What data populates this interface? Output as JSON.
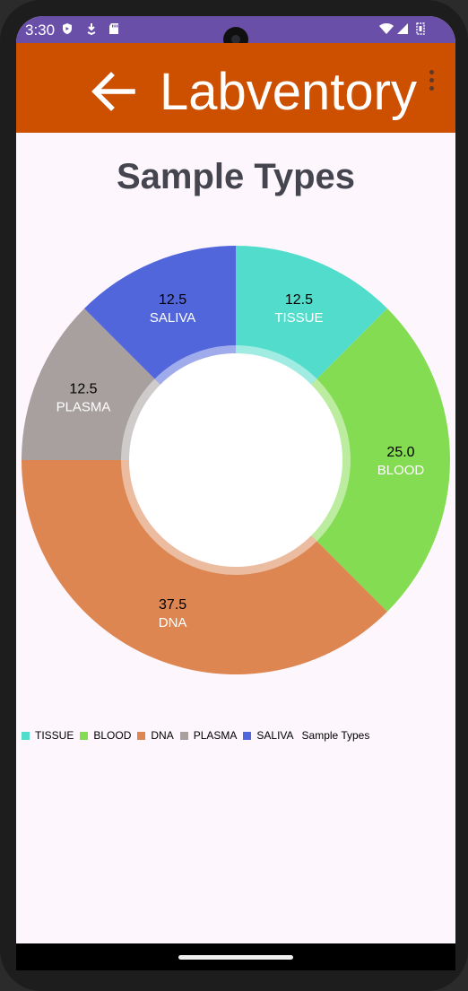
{
  "status_bar": {
    "time": "3:30"
  },
  "app_bar": {
    "title": "Labventory"
  },
  "chart_data": {
    "type": "pie",
    "title": "Sample Types",
    "description": "Sample Types",
    "hole": "donut",
    "slices": [
      {
        "label": "TISSUE",
        "value": 12.5,
        "display": "12.5",
        "color": "#52dccb"
      },
      {
        "label": "BLOOD",
        "value": 25.0,
        "display": "25.0",
        "color": "#84dc52"
      },
      {
        "label": "DNA",
        "value": 37.5,
        "display": "37.5",
        "color": "#dd8652"
      },
      {
        "label": "PLASMA",
        "value": 12.5,
        "display": "12.5",
        "color": "#a7a09f"
      },
      {
        "label": "SALIVA",
        "value": 12.5,
        "display": "12.5",
        "color": "#5266dc"
      }
    ],
    "legend_position": "bottom-left"
  }
}
